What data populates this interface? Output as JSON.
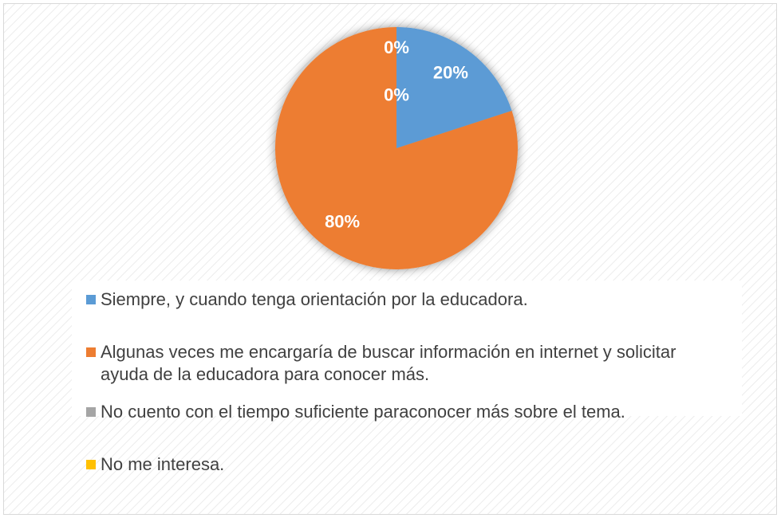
{
  "chart_data": {
    "type": "pie",
    "categories": [
      "Siempre, y cuando tenga orientación por la educadora.",
      "Algunas veces me encargaría de buscar información en internet y solicitar ayuda de la educadora para conocer más.",
      "No cuento con el tiempo suficiente paraconocer más sobre el tema.",
      "No me interesa."
    ],
    "values": [
      20,
      80,
      0,
      0
    ],
    "value_labels": [
      "20%",
      "80%",
      "0%",
      "0%"
    ],
    "colors": [
      "#5b9bd5",
      "#ed7d31",
      "#a5a5a5",
      "#ffc000"
    ]
  }
}
